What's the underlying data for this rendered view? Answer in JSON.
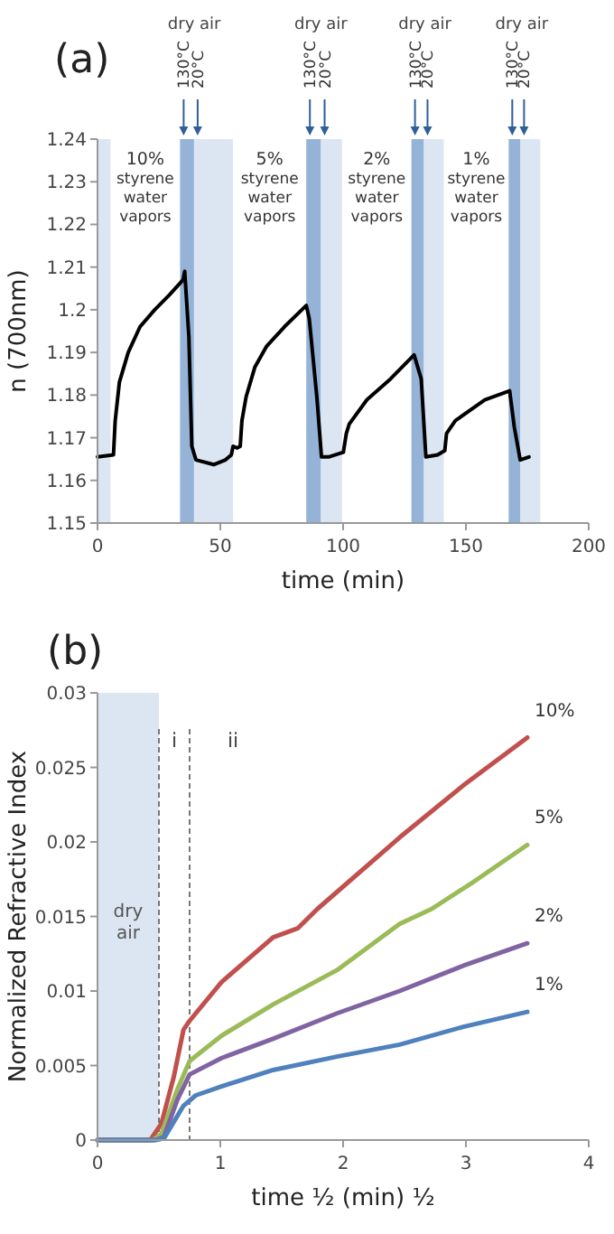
{
  "chart_data": [
    {
      "type": "line",
      "title": "(a)",
      "xlabel": "time (min)",
      "ylabel": "n (700nm)",
      "xlim": [
        0,
        200
      ],
      "xticks": [
        0,
        50,
        100,
        150,
        200
      ],
      "ylim": [
        1.15,
        1.24
      ],
      "yticks": [
        1.15,
        1.16,
        1.17,
        1.18,
        1.19,
        1.2,
        1.21,
        1.22,
        1.23,
        1.24
      ],
      "grid": false,
      "legend": false,
      "marker": "none",
      "line_style": "solid",
      "bands": [
        {
          "axis": "x",
          "from": 0,
          "to": 5.3,
          "label": null,
          "color": "#dce6f2"
        },
        {
          "axis": "x",
          "from": 33.6,
          "to": 39.3,
          "label": "130°C",
          "color": "#95b3d7"
        },
        {
          "axis": "x",
          "from": 39.3,
          "to": 55.2,
          "label": "20°C",
          "color": "#dce6f2"
        },
        {
          "axis": "x",
          "from": 85,
          "to": 91,
          "label": "130°C",
          "color": "#95b3d7"
        },
        {
          "axis": "x",
          "from": 91,
          "to": 99.6,
          "label": "20°C",
          "color": "#dce6f2"
        },
        {
          "axis": "x",
          "from": 127.8,
          "to": 132.9,
          "label": "130°C",
          "color": "#95b3d7"
        },
        {
          "axis": "x",
          "from": 132.9,
          "to": 141,
          "label": "20°C",
          "color": "#dce6f2"
        },
        {
          "axis": "x",
          "from": 167.4,
          "to": 172.2,
          "label": "130°C",
          "color": "#95b3d7"
        },
        {
          "axis": "x",
          "from": 172.2,
          "to": 180.3,
          "label": "20°C",
          "color": "#dce6f2"
        }
      ],
      "annotations": [
        "dry air",
        "dry air",
        "dry air",
        "dry air",
        "10% styrene water vapors",
        "5% styrene water vapors",
        "2% styrene water vapors",
        "1% styrene water vapors"
      ],
      "series": [
        {
          "color": "#000000",
          "x": [
            0,
            6.5,
            7.2,
            8.9,
            12.5,
            17.3,
            23.3,
            29.3,
            34.8,
            35.5,
            37.2,
            38.4,
            40.1,
            47.3,
            52.1,
            54.5,
            55.2,
            56.9,
            58.1,
            58.8,
            60.5,
            64.1,
            68.9,
            76.1,
            85,
            86.2,
            89.3,
            91.2,
            94.1,
            100.1,
            101.3,
            102.5,
            109.7,
            119.3,
            128.9,
            131.8,
            133.7,
            138.5,
            141.4,
            142.1,
            145.7,
            157.7,
            167.8,
            169.7,
            172.1,
            175.7
          ],
          "values": [
            1.1655,
            1.166,
            1.174,
            1.183,
            1.19,
            1.196,
            1.2,
            1.2035,
            1.207,
            1.209,
            1.1937,
            1.168,
            1.1648,
            1.1637,
            1.1648,
            1.166,
            1.168,
            1.1676,
            1.168,
            1.174,
            1.1796,
            1.1866,
            1.1915,
            1.196,
            1.201,
            1.198,
            1.1796,
            1.1655,
            1.1655,
            1.1666,
            1.171,
            1.1732,
            1.1789,
            1.1838,
            1.1894,
            1.1838,
            1.1655,
            1.166,
            1.167,
            1.171,
            1.174,
            1.1789,
            1.181,
            1.1725,
            1.1648,
            1.1655
          ]
        }
      ]
    },
    {
      "type": "line",
      "title": "(b)",
      "xlabel": "time ½ (min) ½",
      "ylabel": "Normalized Refractive Index",
      "xlim": [
        0,
        4
      ],
      "xticks": [
        0,
        1,
        2,
        3,
        4
      ],
      "ylim": [
        0,
        0.03
      ],
      "yticks": [
        0,
        0.005,
        0.01,
        0.015,
        0.02,
        0.025,
        0.03
      ],
      "grid": false,
      "legend": false,
      "marker": "none",
      "line_style": "solid",
      "bands": [
        {
          "axis": "x",
          "from": 0,
          "to": 0.5,
          "label": "dry air",
          "color": "#dce6f2"
        }
      ],
      "ref_lines": [
        {
          "axis": "x",
          "value": 0.5,
          "label": null,
          "line_style": "dashed"
        },
        {
          "axis": "x",
          "value": 0.75,
          "label": null,
          "line_style": "dashed"
        }
      ],
      "annotations": [
        "i",
        "ii"
      ],
      "series": [
        {
          "name": "10%",
          "color": "#c0504d",
          "x": [
            0,
            0.43,
            0.52,
            0.62,
            0.7,
            0.75,
            1.01,
            1.43,
            1.63,
            1.79,
            2.46,
            2.98,
            3.5
          ],
          "values": [
            0,
            0,
            0.0011,
            0.0042,
            0.0074,
            0.008,
            0.0106,
            0.0136,
            0.0142,
            0.0155,
            0.0203,
            0.0238,
            0.027
          ]
        },
        {
          "name": "5%",
          "color": "#9bbb59",
          "x": [
            0,
            0.45,
            0.52,
            0.65,
            0.75,
            1.01,
            1.43,
            1.95,
            2.46,
            2.72,
            3.04,
            3.5
          ],
          "values": [
            0,
            0,
            0.0004,
            0.0034,
            0.0053,
            0.007,
            0.0091,
            0.0114,
            0.0145,
            0.0155,
            0.0172,
            0.0198
          ]
        },
        {
          "name": "2%",
          "color": "#8064a2",
          "x": [
            0,
            0.47,
            0.54,
            0.65,
            0.75,
            1.01,
            1.43,
            1.95,
            2.46,
            2.98,
            3.5
          ],
          "values": [
            0,
            0,
            0.0002,
            0.0027,
            0.0044,
            0.0055,
            0.0068,
            0.0085,
            0.01,
            0.0117,
            0.0132
          ]
        },
        {
          "name": "1%",
          "color": "#4f81bd",
          "x": [
            0,
            0.47,
            0.54,
            0.7,
            0.8,
            1.01,
            1.43,
            1.95,
            2.46,
            2.98,
            3.5
          ],
          "values": [
            0,
            0,
            0.0001,
            0.0023,
            0.003,
            0.0036,
            0.0047,
            0.0056,
            0.0064,
            0.0076,
            0.0086
          ]
        }
      ]
    }
  ]
}
